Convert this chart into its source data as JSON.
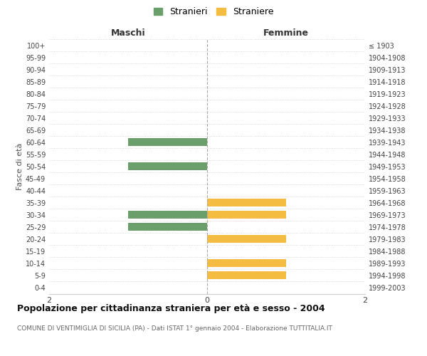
{
  "age_groups": [
    "0-4",
    "5-9",
    "10-14",
    "15-19",
    "20-24",
    "25-29",
    "30-34",
    "35-39",
    "40-44",
    "45-49",
    "50-54",
    "55-59",
    "60-64",
    "65-69",
    "70-74",
    "75-79",
    "80-84",
    "85-89",
    "90-94",
    "95-99",
    "100+"
  ],
  "birth_years": [
    "1999-2003",
    "1994-1998",
    "1989-1993",
    "1984-1988",
    "1979-1983",
    "1974-1978",
    "1969-1973",
    "1964-1968",
    "1959-1963",
    "1954-1958",
    "1949-1953",
    "1944-1948",
    "1939-1943",
    "1934-1938",
    "1929-1933",
    "1924-1928",
    "1919-1923",
    "1914-1918",
    "1909-1913",
    "1904-1908",
    "≤ 1903"
  ],
  "males": [
    0,
    0,
    0,
    0,
    0,
    1,
    1,
    0,
    0,
    0,
    1,
    0,
    1,
    0,
    0,
    0,
    0,
    0,
    0,
    0,
    0
  ],
  "females": [
    0,
    1,
    1,
    0,
    1,
    0,
    1,
    1,
    0,
    0,
    0,
    0,
    0,
    0,
    0,
    0,
    0,
    0,
    0,
    0,
    0
  ],
  "male_color": "#6a9e6a",
  "female_color": "#f5bc42",
  "title": "Popolazione per cittadinanza straniera per età e sesso - 2004",
  "subtitle": "COMUNE DI VENTIMIGLIA DI SICILIA (PA) - Dati ISTAT 1° gennaio 2004 - Elaborazione TUTTITALIA.IT",
  "legend_male": "Stranieri",
  "legend_female": "Straniere",
  "xlabel_left": "Maschi",
  "xlabel_right": "Femmine",
  "ylabel_left": "Fasce di età",
  "xlim": 2,
  "background_color": "#ffffff",
  "grid_color": "#cccccc"
}
